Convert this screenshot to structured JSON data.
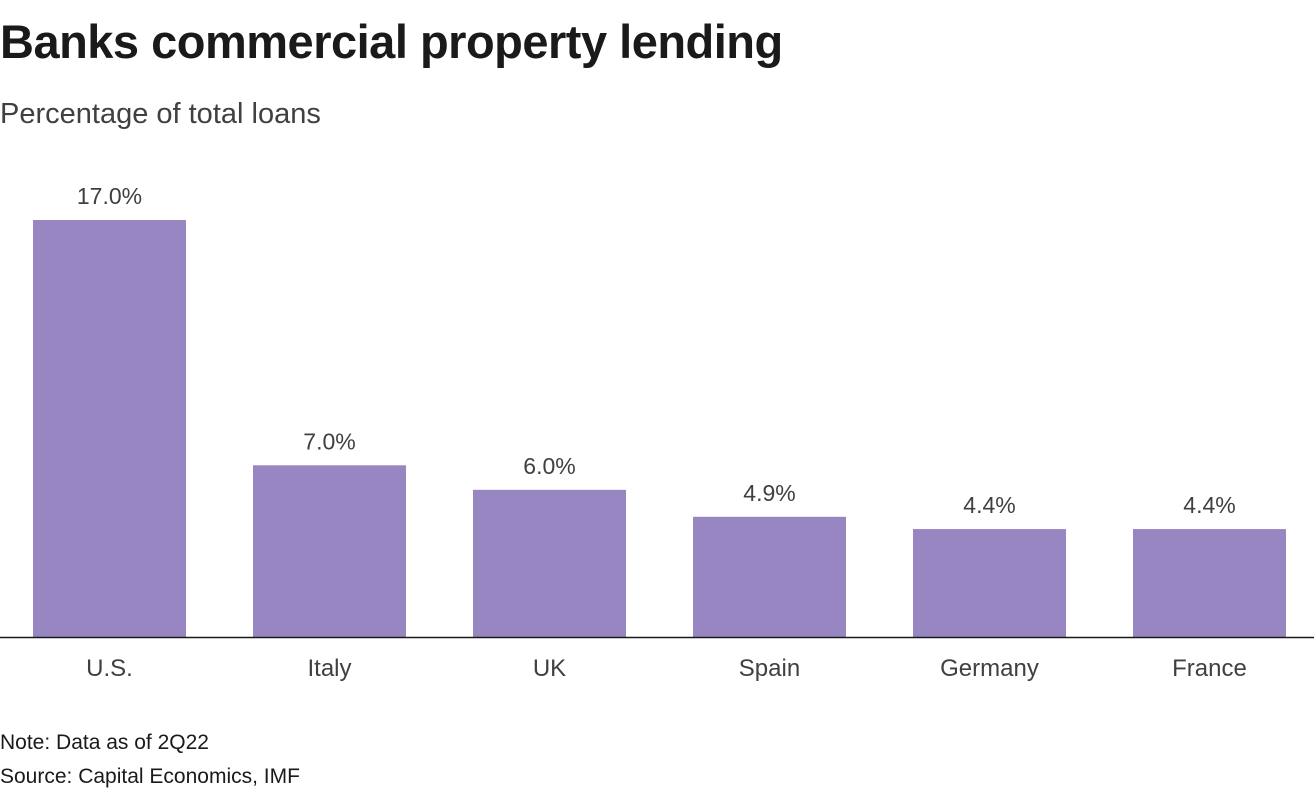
{
  "header": {
    "title": "Banks commercial property lending",
    "subtitle": "Percentage of total loans"
  },
  "footer": {
    "note": "Note: Data as of 2Q22",
    "source": "Source: Capital Economics, IMF"
  },
  "colors": {
    "bar": "#9786c1",
    "axis": "#1a1a1a",
    "label": "#404040"
  },
  "chart_data": {
    "type": "bar",
    "title": "Banks commercial property lending",
    "subtitle": "Percentage of total loans",
    "xlabel": "",
    "ylabel": "",
    "categories": [
      "U.S.",
      "Italy",
      "UK",
      "Spain",
      "Germany",
      "France"
    ],
    "values": [
      17.0,
      7.0,
      6.0,
      4.9,
      4.4,
      4.4
    ],
    "value_labels": [
      "17.0%",
      "7.0%",
      "6.0%",
      "4.9%",
      "4.4%",
      "4.4%"
    ],
    "ylim": [
      0,
      17.0
    ],
    "grid": false,
    "legend": "none"
  }
}
